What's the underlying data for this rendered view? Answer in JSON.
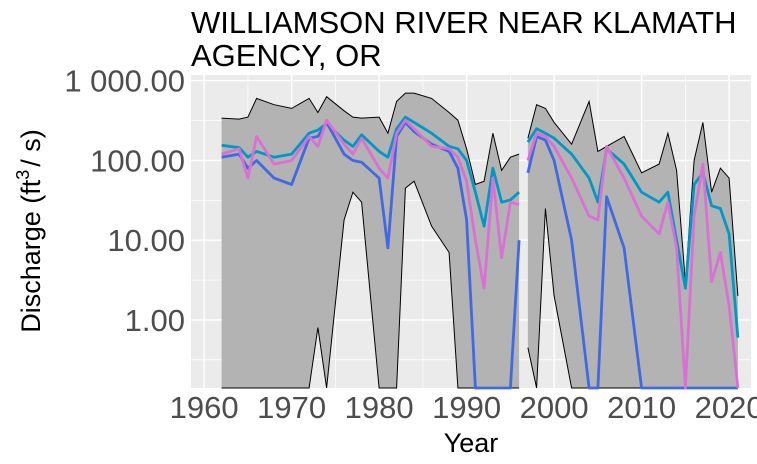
{
  "chart_data": {
    "type": "area",
    "title_lines": [
      "WILLIAMSON RIVER NEAR KLAMATH",
      "AGENCY, OR"
    ],
    "xlabel": "Year",
    "ylabel_main": "Discharge (ft",
    "ylabel_sup": "3",
    "ylabel_end": "/ s)",
    "x_scale": "linear",
    "y_scale": "log10",
    "xlim": [
      1958.5,
      2022.5
    ],
    "ylim": [
      0.14,
      1180
    ],
    "grid": true,
    "x_ticks": [
      1960,
      1970,
      1980,
      1990,
      2000,
      2010,
      2020
    ],
    "x_tick_labels": [
      "1960",
      "1970",
      "1980",
      "1990",
      "2000",
      "2010",
      "2020"
    ],
    "y_ticks": [
      1,
      10,
      100,
      1000
    ],
    "y_tick_labels": [
      "1.00",
      "10.00",
      "100.00",
      "1 000.00"
    ],
    "colors": {
      "panel": "#ebebeb",
      "grid": "#ffffff",
      "ribbon_fill": "#b3b3b3",
      "ribbon_line": "#000000",
      "series_1": "#0099c6",
      "series_2": "#4169e1",
      "series_3": "#da70d6"
    },
    "segments": [
      {
        "x": [
          1962,
          1964,
          1965,
          1966,
          1968,
          1970,
          1972,
          1973,
          1974,
          1976,
          1977,
          1978,
          1980,
          1981,
          1982,
          1983,
          1984,
          1986,
          1988,
          1989,
          1990,
          1991,
          1992,
          1993,
          1994,
          1995,
          1996
        ],
        "upper": [
          340,
          330,
          350,
          600,
          500,
          450,
          600,
          400,
          630,
          420,
          350,
          340,
          350,
          220,
          550,
          700,
          700,
          600,
          400,
          320,
          140,
          50,
          55,
          220,
          75,
          110,
          120
        ],
        "lower": [
          0.14,
          0.14,
          0.14,
          0.14,
          0.14,
          0.14,
          0.14,
          0.8,
          0.14,
          18,
          40,
          30,
          0.14,
          0.14,
          0.14,
          45,
          55,
          15,
          7,
          0.14,
          0.14,
          0.14,
          0.14,
          0.14,
          0.14,
          0.14,
          0.14
        ],
        "series": [
          {
            "values": [
              155,
              145,
              110,
              130,
              110,
              120,
              220,
              240,
              290,
              180,
              150,
              210,
              130,
              110,
              250,
              350,
              300,
              220,
              150,
              140,
              100,
              40,
              15,
              80,
              30,
              32,
              40
            ]
          },
          {
            "values": [
              110,
              120,
              80,
              100,
              60,
              50,
              190,
              200,
              300,
              120,
              100,
              95,
              60,
              8,
              200,
              300,
              230,
              160,
              130,
              80,
              18,
              0.14,
              0.14,
              0.14,
              0.14,
              0.14,
              10
            ]
          },
          {
            "values": [
              120,
              140,
              60,
              200,
              90,
              100,
              200,
              150,
              320,
              160,
              120,
              190,
              80,
              60,
              220,
              320,
              250,
              150,
              140,
              110,
              55,
              10,
              2.5,
              60,
              6,
              30,
              28
            ]
          }
        ]
      },
      {
        "x": [
          1997,
          1998,
          1999,
          2000,
          2002,
          2004,
          2005,
          2006,
          2008,
          2010,
          2012,
          2013,
          2014,
          2015,
          2016,
          2017,
          2018,
          2019,
          2020,
          2021
        ],
        "upper": [
          190,
          500,
          450,
          300,
          160,
          550,
          130,
          150,
          200,
          70,
          90,
          220,
          75,
          3,
          100,
          300,
          40,
          80,
          60,
          2
        ],
        "lower": [
          0.45,
          0.14,
          25,
          2,
          0.14,
          0.14,
          0.14,
          0.14,
          0.14,
          0.14,
          0.14,
          0.14,
          0.14,
          0.14,
          0.14,
          0.14,
          0.14,
          0.14,
          0.14,
          0.14
        ],
        "series": [
          {
            "values": [
              170,
              250,
              220,
              190,
              120,
              60,
              30,
              140,
              90,
              40,
              30,
              40,
              10,
              2.5,
              50,
              70,
              27,
              25,
              12,
              0.6
            ]
          },
          {
            "values": [
              70,
              200,
              180,
              100,
              10,
              0.14,
              0.14,
              35,
              8,
              0.14,
              0.14,
              0.14,
              0.14,
              0.14,
              0.14,
              0.14,
              0.14,
              0.14,
              0.14,
              0.14
            ]
          },
          {
            "values": [
              100,
              220,
              200,
              150,
              60,
              20,
              18,
              150,
              60,
              20,
              12,
              30,
              8,
              0.14,
              20,
              90,
              3,
              7,
              1.5,
              0.14
            ]
          }
        ]
      }
    ]
  }
}
